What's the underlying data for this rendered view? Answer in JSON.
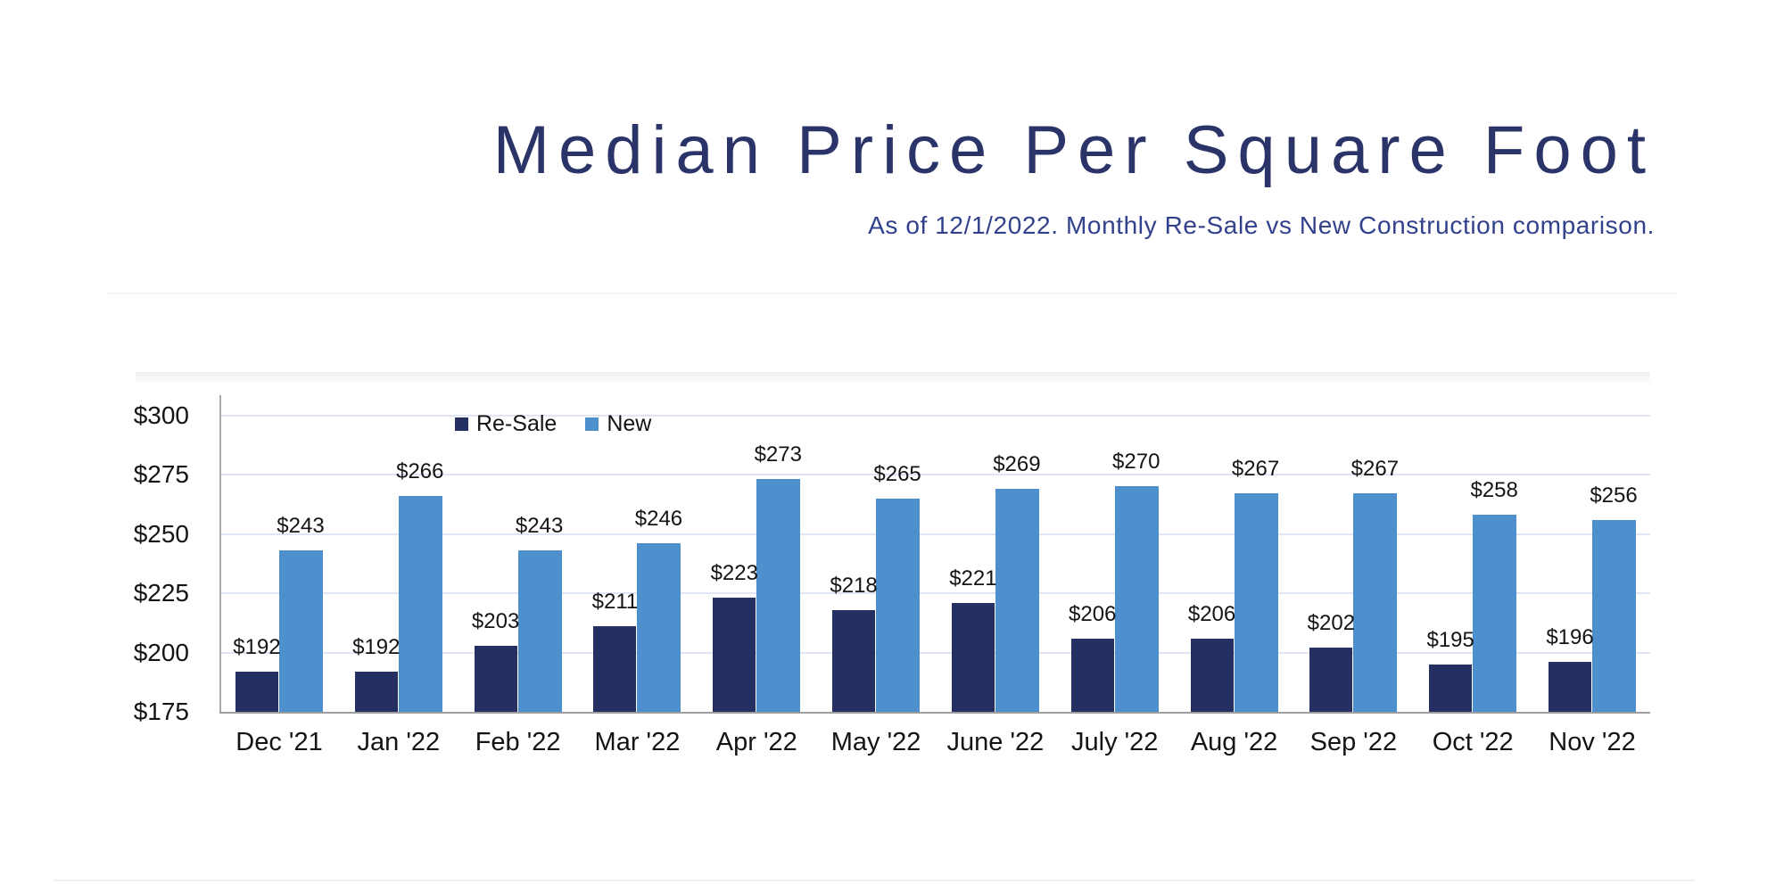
{
  "title": "Median Price Per Square Foot",
  "subtitle": "As of 12/1/2022. Monthly Re-Sale vs New Construction comparison.",
  "colors": {
    "title_text": "#2B3468",
    "subtitle_text": "#32418C",
    "resale_bar": "#262F62",
    "new_bar": "#4D90CD",
    "gridline": "#dfe5f2",
    "axis_line": "#9d9d9d",
    "label_text": "#141414"
  },
  "legend": {
    "items": [
      {
        "label": "Re-Sale",
        "color": "#262F62"
      },
      {
        "label": "New",
        "color": "#4D90CD"
      }
    ]
  },
  "chart_data": {
    "type": "bar",
    "title": "Median Price Per Square Foot",
    "subtitle": "As of 12/1/2022. Monthly Re-Sale vs New Construction comparison.",
    "categories": [
      "Dec '21",
      "Jan '22",
      "Feb '22",
      "Mar '22",
      "Apr '22",
      "May '22",
      "June '22",
      "July '22",
      "Aug '22",
      "Sep '22",
      "Oct '22",
      "Nov '22"
    ],
    "series": [
      {
        "name": "Re-Sale",
        "color": "#262F62",
        "values": [
          192,
          192,
          203,
          211,
          223,
          218,
          221,
          206,
          206,
          202,
          195,
          196
        ]
      },
      {
        "name": "New",
        "color": "#4D90CD",
        "values": [
          243,
          266,
          243,
          246,
          273,
          265,
          269,
          270,
          267,
          267,
          258,
          256
        ]
      }
    ],
    "data_labels": {
      "resale": [
        "$192",
        "$192",
        "$203",
        "$211",
        "$223",
        "$218",
        "$221",
        "$206",
        "$206",
        "$202",
        "$195",
        "$196"
      ],
      "new": [
        "$243",
        "$266",
        "$243",
        "$246",
        "$273",
        "$265",
        "$269",
        "$270",
        "$267",
        "$267",
        "$258",
        "$256"
      ]
    },
    "ylim": [
      175,
      300
    ],
    "ytick_step": 25,
    "ytick_values": [
      175,
      200,
      225,
      250,
      275,
      300
    ],
    "ytick_labels": [
      "$175",
      "$200",
      "$225",
      "$250",
      "$275",
      "$300"
    ],
    "value_prefix": "$",
    "grid": "horizontal-only",
    "legend_position": "inside-top-left"
  }
}
